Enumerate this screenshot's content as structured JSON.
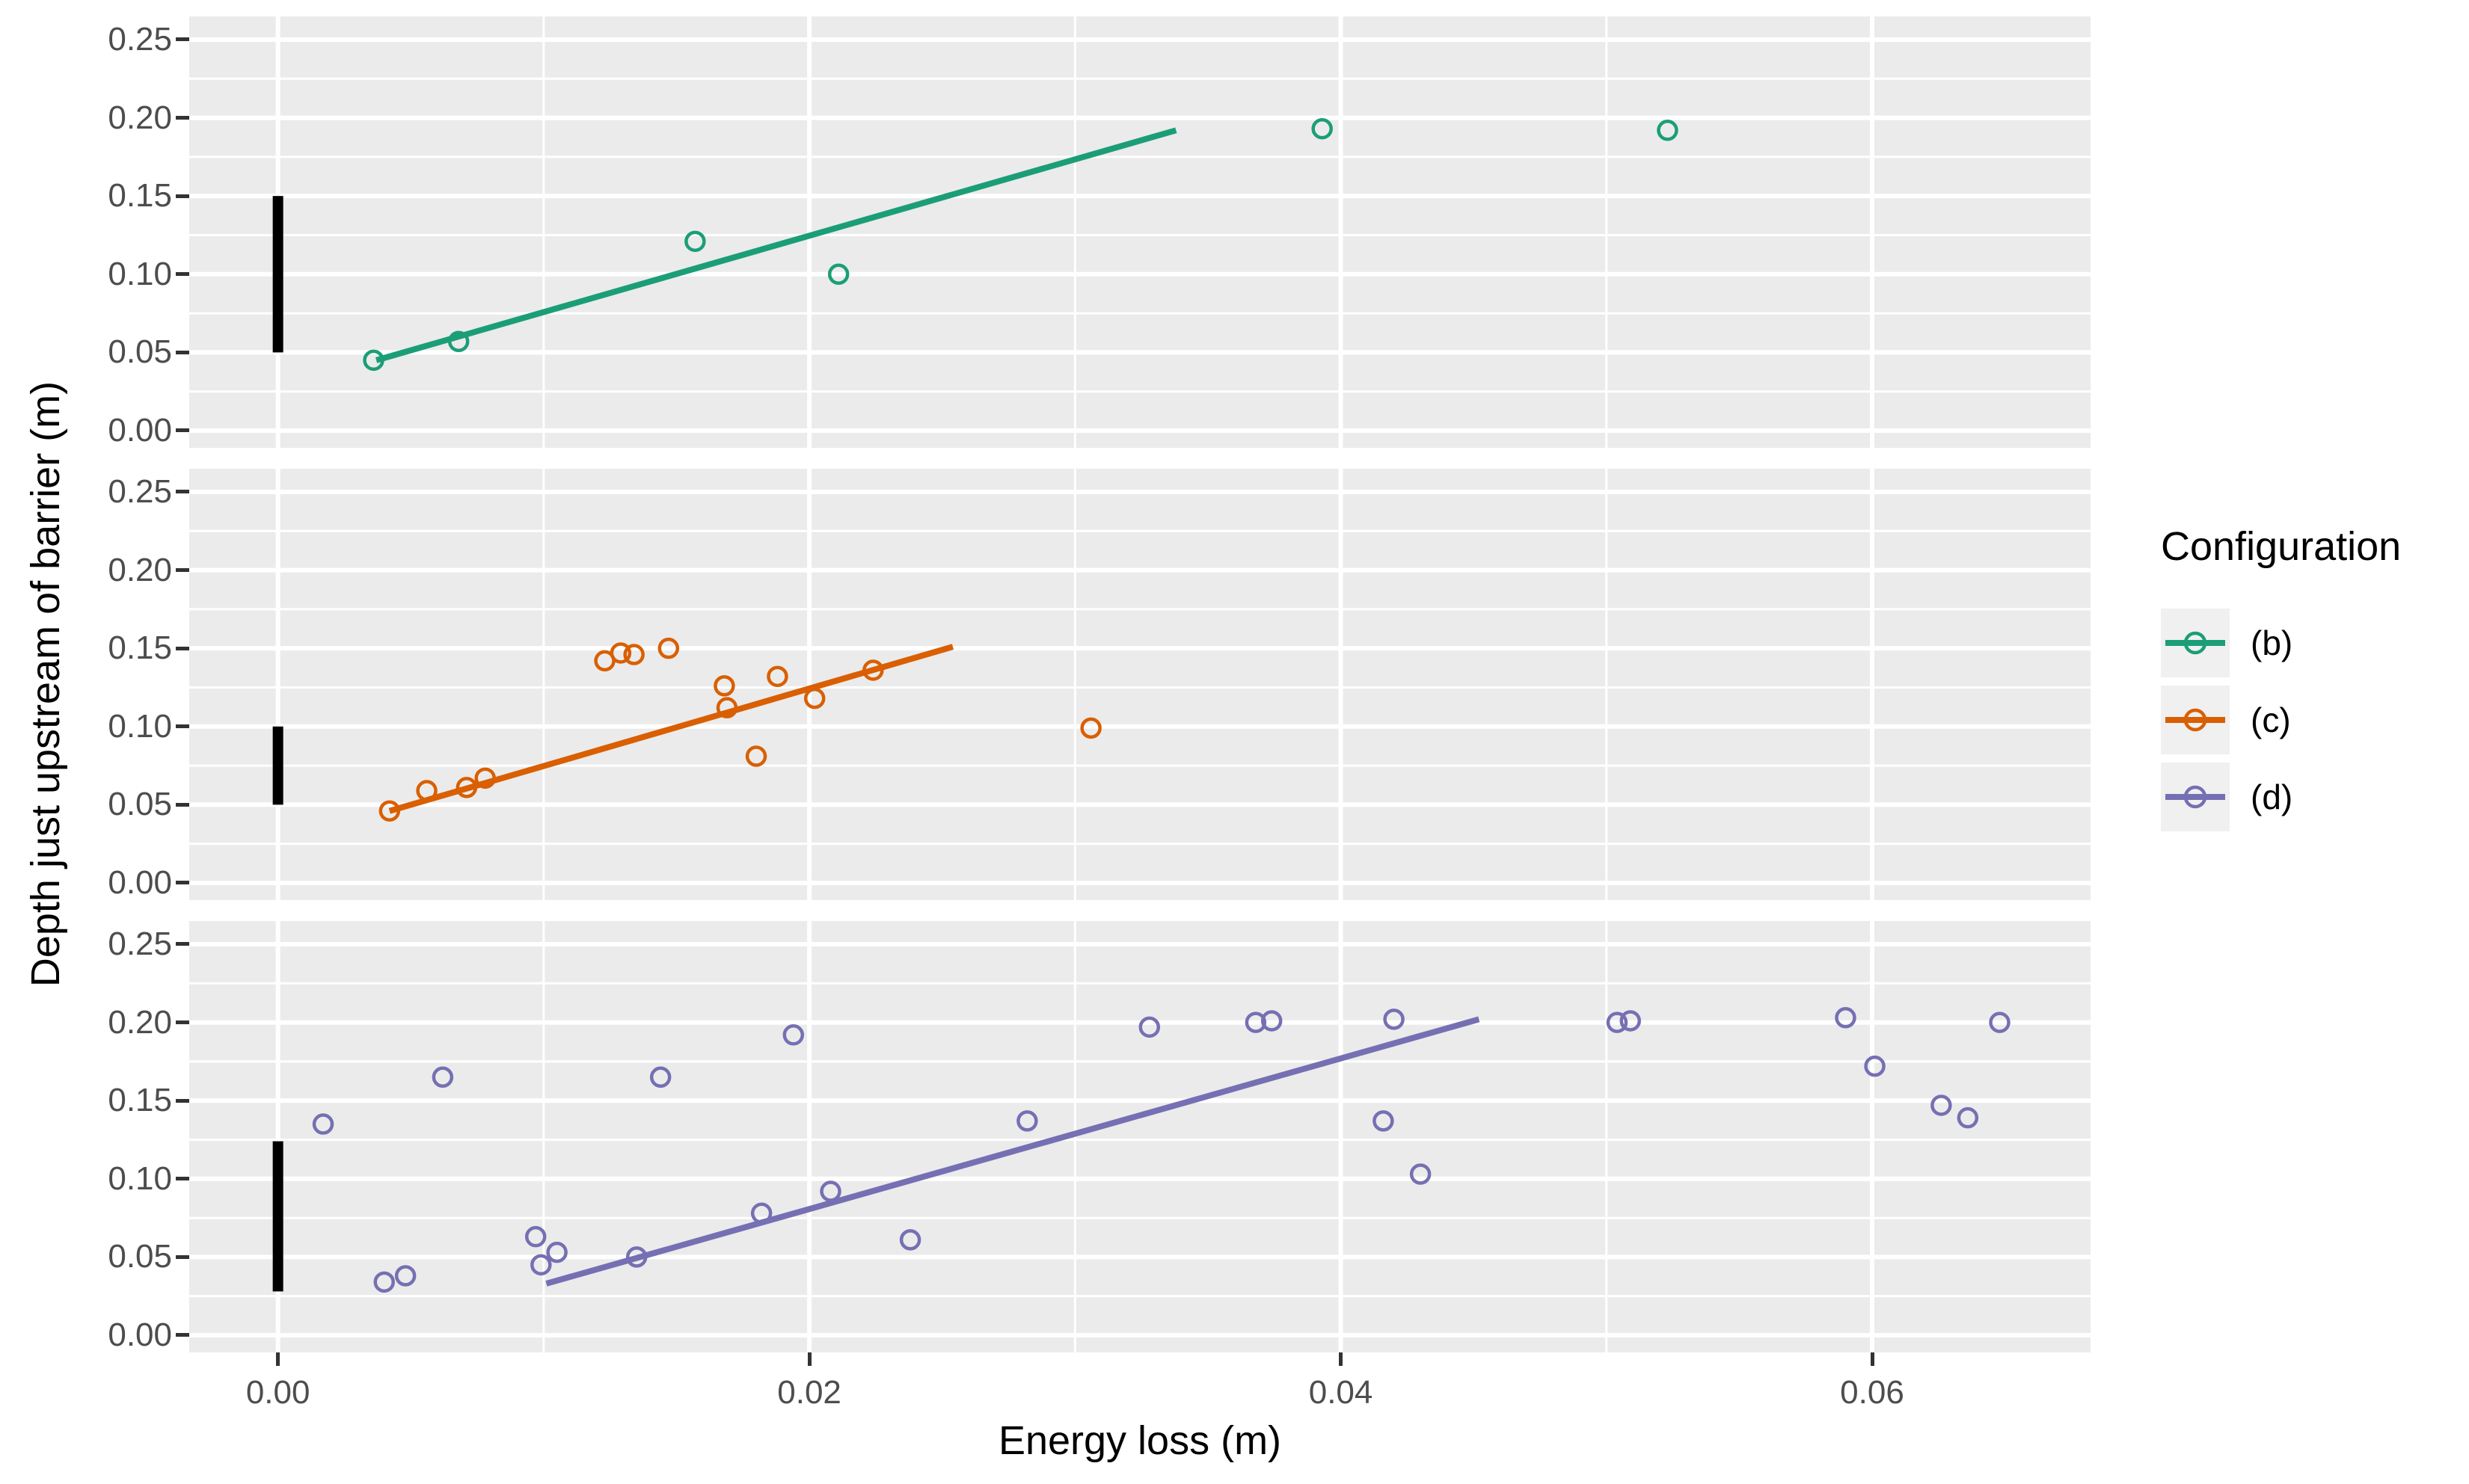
{
  "chart_data": {
    "type": "scatter",
    "xlabel": "Energy loss (m)",
    "ylabel": "Depth just upstream of barrier (m)",
    "xlim": [
      -0.00334,
      0.06822
    ],
    "ylim": [
      -0.011,
      0.2648
    ],
    "grid": "on",
    "background_color": "#EBEBEB",
    "gridline_color": "#FFFFFF",
    "tick_text_color": "#4D4D4D",
    "x_ticks": {
      "values": [
        0.0,
        0.02,
        0.04,
        0.06
      ],
      "labels": [
        "0.00",
        "0.02",
        "0.04",
        "0.06"
      ]
    },
    "y_ticks": {
      "values": [
        0.0,
        0.05,
        0.1,
        0.15,
        0.2,
        0.25
      ],
      "labels": [
        "0.00",
        "0.05",
        "0.10",
        "0.15",
        "0.20",
        "0.25"
      ]
    },
    "x_minor_ticks": [
      0.01,
      0.03,
      0.05
    ],
    "y_minor_ticks": [
      0.025,
      0.075,
      0.125,
      0.175,
      0.225
    ],
    "legend": {
      "title": "Configuration",
      "position": "right",
      "entries": [
        {
          "label": "(b)",
          "color": "#1B9E77"
        },
        {
          "label": "(c)",
          "color": "#D95F02"
        },
        {
          "label": "(d)",
          "color": "#7570B3"
        }
      ]
    },
    "series": [
      {
        "name": "(b)",
        "color": "#1B9E77",
        "barrier_bar": {
          "x": 0.0,
          "ymin": 0.05,
          "ymax": 0.15,
          "color": "#000000"
        },
        "trend_line": {
          "x1": 0.0037,
          "y1": 0.045,
          "x2": 0.0338,
          "y2": 0.192
        },
        "points": [
          [
            0.0036,
            0.045
          ],
          [
            0.0068,
            0.057
          ],
          [
            0.0157,
            0.121
          ],
          [
            0.0211,
            0.1
          ],
          [
            0.0393,
            0.193
          ],
          [
            0.0523,
            0.192
          ]
        ]
      },
      {
        "name": "(c)",
        "color": "#D95F02",
        "barrier_bar": {
          "x": 0.0,
          "ymin": 0.05,
          "ymax": 0.1,
          "color": "#000000"
        },
        "trend_line": {
          "x1": 0.0042,
          "y1": 0.046,
          "x2": 0.0254,
          "y2": 0.151
        },
        "points": [
          [
            0.0042,
            0.046
          ],
          [
            0.0056,
            0.059
          ],
          [
            0.0071,
            0.061
          ],
          [
            0.0078,
            0.067
          ],
          [
            0.0123,
            0.142
          ],
          [
            0.0129,
            0.147
          ],
          [
            0.0134,
            0.146
          ],
          [
            0.0147,
            0.15
          ],
          [
            0.0168,
            0.126
          ],
          [
            0.0169,
            0.112
          ],
          [
            0.018,
            0.081
          ],
          [
            0.0188,
            0.132
          ],
          [
            0.0202,
            0.118
          ],
          [
            0.0224,
            0.136
          ],
          [
            0.0306,
            0.099
          ]
        ]
      },
      {
        "name": "(d)",
        "color": "#7570B3",
        "barrier_bar": {
          "x": 0.0,
          "ymin": 0.028,
          "ymax": 0.124,
          "color": "#000000"
        },
        "trend_line": {
          "x1": 0.0101,
          "y1": 0.033,
          "x2": 0.0452,
          "y2": 0.202
        },
        "points": [
          [
            0.0017,
            0.135
          ],
          [
            0.004,
            0.034
          ],
          [
            0.0048,
            0.038
          ],
          [
            0.0062,
            0.165
          ],
          [
            0.0097,
            0.063
          ],
          [
            0.0099,
            0.045
          ],
          [
            0.0105,
            0.053
          ],
          [
            0.0135,
            0.05
          ],
          [
            0.0144,
            0.165
          ],
          [
            0.0182,
            0.078
          ],
          [
            0.0194,
            0.192
          ],
          [
            0.0208,
            0.092
          ],
          [
            0.0238,
            0.061
          ],
          [
            0.0282,
            0.137
          ],
          [
            0.0328,
            0.197
          ],
          [
            0.0368,
            0.2
          ],
          [
            0.0374,
            0.201
          ],
          [
            0.0416,
            0.137
          ],
          [
            0.042,
            0.202
          ],
          [
            0.043,
            0.103
          ],
          [
            0.0504,
            0.2
          ],
          [
            0.0509,
            0.201
          ],
          [
            0.059,
            0.203
          ],
          [
            0.0601,
            0.172
          ],
          [
            0.0626,
            0.147
          ],
          [
            0.0636,
            0.139
          ],
          [
            0.0648,
            0.2
          ]
        ]
      }
    ]
  }
}
